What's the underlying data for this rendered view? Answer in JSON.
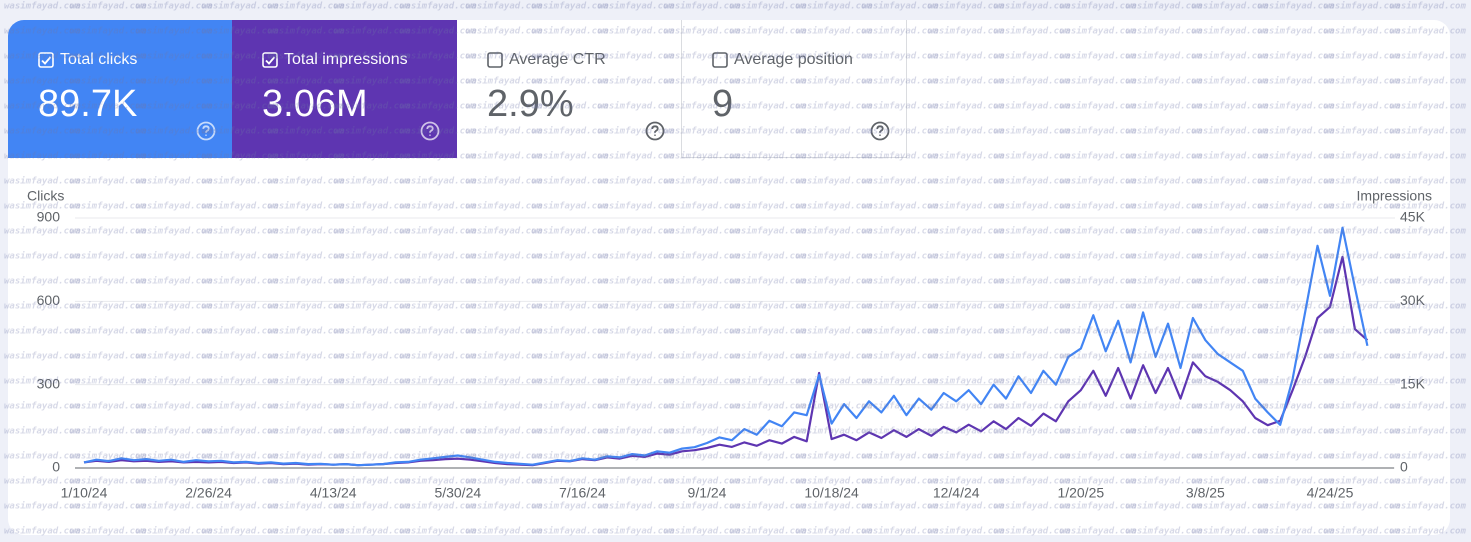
{
  "metrics": [
    {
      "label": "Total clicks",
      "value": "89.7K",
      "checked": true
    },
    {
      "label": "Total impressions",
      "value": "3.06M",
      "checked": true
    },
    {
      "label": "Average CTR",
      "value": "2.9%",
      "checked": false
    },
    {
      "label": "Average position",
      "value": "9",
      "checked": false
    }
  ],
  "watermark": "wasimfayad.com",
  "chart_data": {
    "type": "line",
    "y_label": "Clicks",
    "y2_label": "Impressions",
    "grid": true,
    "categories": [
      "1/10/24",
      null,
      null,
      null,
      null,
      null,
      null,
      null,
      null,
      null,
      "2/26/24",
      null,
      null,
      null,
      null,
      null,
      null,
      null,
      null,
      null,
      "4/13/24",
      null,
      null,
      null,
      null,
      null,
      null,
      null,
      null,
      null,
      "5/30/24",
      null,
      null,
      null,
      null,
      null,
      null,
      null,
      null,
      null,
      "7/16/24",
      null,
      null,
      null,
      null,
      null,
      null,
      null,
      null,
      null,
      "9/1/24",
      null,
      null,
      null,
      null,
      null,
      null,
      null,
      null,
      null,
      "10/18/24",
      null,
      null,
      null,
      null,
      null,
      null,
      null,
      null,
      null,
      "12/4/24",
      null,
      null,
      null,
      null,
      null,
      null,
      null,
      null,
      null,
      "1/20/25",
      null,
      null,
      null,
      null,
      null,
      null,
      null,
      null,
      null,
      "3/8/25",
      null,
      null,
      null,
      null,
      null,
      null,
      null,
      null,
      null,
      "4/24/25",
      null,
      null,
      null
    ],
    "ylim": [
      0,
      900
    ],
    "yticks": [
      0,
      300,
      600,
      900
    ],
    "y2lim": [
      0,
      45000
    ],
    "y2ticks": [
      0,
      {
        "value": 15000,
        "label": "15K"
      },
      {
        "value": 30000,
        "label": "30K"
      },
      {
        "value": 45000,
        "label": "45K"
      }
    ],
    "series": [
      {
        "color": "#4285f4",
        "values": [
          20,
          30,
          25,
          35,
          28,
          32,
          26,
          30,
          22,
          28,
          24,
          26,
          20,
          22,
          18,
          20,
          16,
          18,
          14,
          15,
          12,
          14,
          10,
          12,
          14,
          20,
          22,
          30,
          35,
          40,
          45,
          38,
          30,
          22,
          18,
          15,
          12,
          20,
          28,
          25,
          35,
          30,
          42,
          38,
          50,
          45,
          60,
          55,
          70,
          75,
          90,
          110,
          100,
          140,
          120,
          170,
          150,
          200,
          190,
          335,
          160,
          230,
          180,
          240,
          200,
          260,
          190,
          250,
          210,
          270,
          240,
          280,
          230,
          300,
          250,
          330,
          270,
          350,
          300,
          400,
          430,
          550,
          420,
          530,
          380,
          560,
          400,
          520,
          360,
          540,
          460,
          410,
          380,
          350,
          250,
          200,
          155,
          320,
          560,
          800,
          620,
          865,
          650,
          440
        ]
      },
      {
        "color": "#5e35b1",
        "axis": "y2",
        "values": [
          1000,
          1300,
          1100,
          1400,
          1200,
          1300,
          1100,
          1200,
          1000,
          1100,
          1000,
          1100,
          900,
          1000,
          800,
          900,
          700,
          800,
          600,
          700,
          600,
          700,
          500,
          600,
          700,
          900,
          1000,
          1300,
          1400,
          1600,
          1700,
          1500,
          1200,
          900,
          700,
          600,
          500,
          900,
          1300,
          1200,
          1600,
          1400,
          1900,
          1700,
          2200,
          2000,
          2600,
          2400,
          3000,
          3200,
          3600,
          4200,
          3800,
          4600,
          4000,
          5000,
          4400,
          5600,
          4800,
          17100,
          5200,
          6000,
          5000,
          6400,
          5400,
          6800,
          5600,
          7000,
          5800,
          7400,
          6400,
          7800,
          6600,
          8400,
          7000,
          9000,
          7600,
          9800,
          8400,
          12000,
          14000,
          17500,
          13000,
          18000,
          12500,
          18500,
          13500,
          18000,
          12500,
          19000,
          16500,
          15500,
          14000,
          12000,
          9000,
          7700,
          8500,
          14000,
          20000,
          27000,
          29000,
          38000,
          25000,
          23000
        ]
      }
    ]
  }
}
